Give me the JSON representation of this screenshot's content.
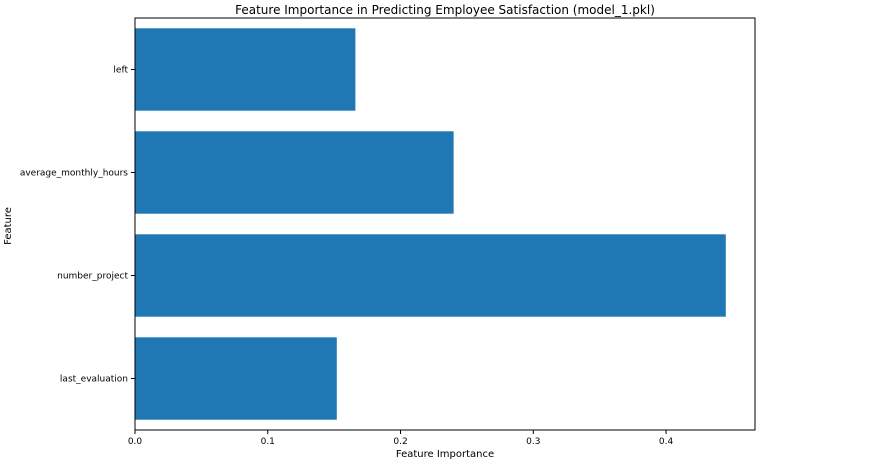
{
  "chart_data": {
    "type": "bar",
    "orientation": "horizontal",
    "title": "Feature Importance in Predicting Employee Satisfaction (model_1.pkl)",
    "xlabel": "Feature Importance",
    "ylabel": "Feature",
    "categories": [
      "last_evaluation",
      "number_project",
      "average_monthly_hours",
      "left"
    ],
    "values": [
      0.152,
      0.445,
      0.24,
      0.166
    ],
    "xlim": [
      0,
      0.467
    ],
    "xticks": [
      0.0,
      0.1,
      0.2,
      0.3,
      0.4
    ],
    "xtick_labels": [
      "0.0",
      "0.1",
      "0.2",
      "0.3",
      "0.4"
    ],
    "bar_color": "#1f77b4",
    "grid": false
  }
}
